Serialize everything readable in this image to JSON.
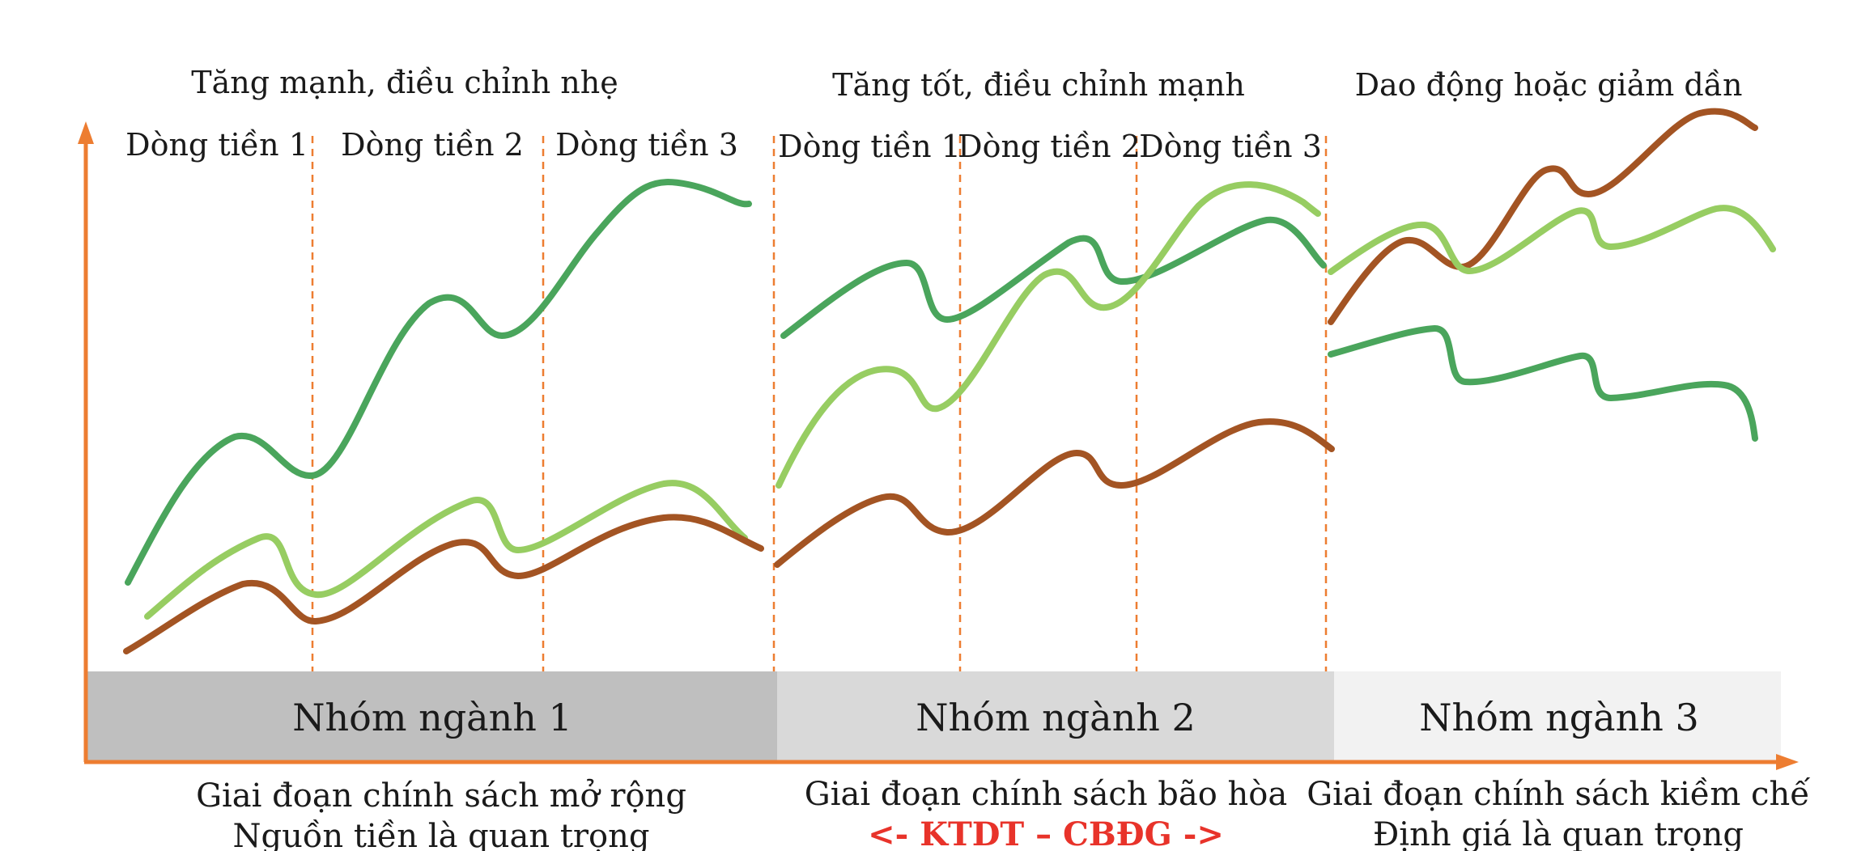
{
  "colors": {
    "axis": "#ed7d31",
    "dark_green": "#4aa55c",
    "light_green": "#97cd62",
    "brown": "#a35423",
    "band1": "#bfbfbf",
    "band2": "#d9d9d9",
    "band3": "#f2f2f2",
    "warning_red": "#e8332a"
  },
  "phases": [
    {
      "heading": "Tăng mạnh, điều chỉnh nhẹ",
      "flows": [
        "Dòng tiền 1",
        "Dòng tiền 2",
        "Dòng tiền 3"
      ],
      "group": "Nhóm ngành 1",
      "footer_line1": "Giai đoạn chính sách mở rộng",
      "footer_line2": "Nguồn tiền là quan trọng"
    },
    {
      "heading": "Tăng tốt, điều chỉnh mạnh",
      "flows": [
        "Dòng tiền 1",
        "Dòng tiền 2",
        "Dòng tiền 3"
      ],
      "group": "Nhóm ngành 2",
      "footer_line1": "Giai đoạn chính sách bão hòa",
      "footer_line2": "<- KTDT – CBĐG ->"
    },
    {
      "heading": "Dao động hoặc giảm dần",
      "flows": [],
      "group": "Nhóm ngành 3",
      "footer_line1": "Giai đoạn chính sách kiềm chế",
      "footer_line2": "Định giá là quan trọng"
    }
  ]
}
